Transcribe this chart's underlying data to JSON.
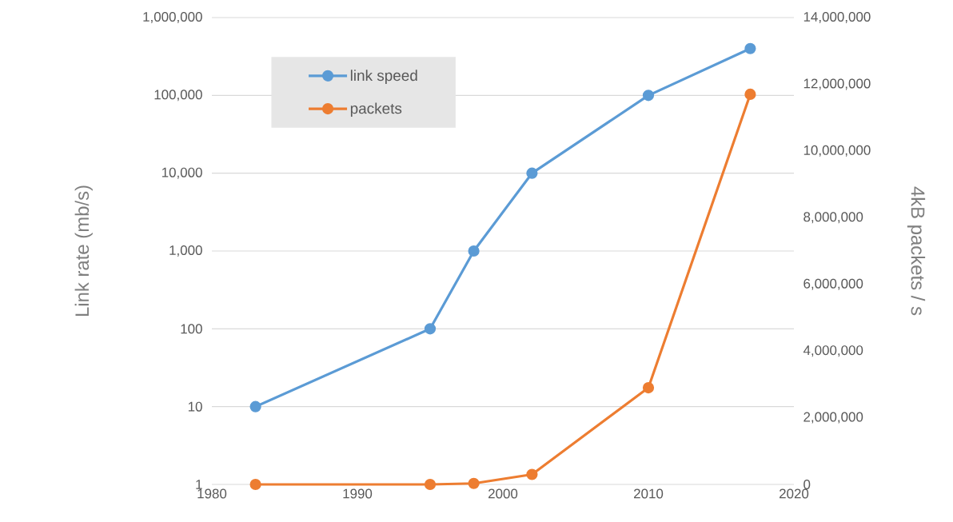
{
  "chart_data": {
    "type": "line",
    "ylabel": "Link rate (mb/s)",
    "y2label": "4kB packets / s",
    "x": [
      1983,
      1995,
      1998,
      2002,
      2010,
      2017
    ],
    "series": [
      {
        "name": "link speed",
        "color": "#5b9bd5",
        "values": [
          10,
          100,
          1000,
          10000,
          100000,
          400000
        ]
      },
      {
        "name": "packets",
        "color": "#ed7d31",
        "axis": "y2",
        "values": [
          0,
          0,
          30000,
          300000,
          2900000,
          11700000
        ]
      }
    ],
    "xlim": [
      1980,
      2020
    ],
    "xticks": [
      1980,
      1990,
      2000,
      2010,
      2020
    ],
    "ylim": [
      1,
      1000000
    ],
    "yticks": [
      1,
      10,
      100,
      {
        "value": 1000,
        "label": "1,000"
      },
      {
        "value": 10000,
        "label": "10,000"
      },
      {
        "value": 100000,
        "label": "100,000"
      },
      {
        "value": 1000000,
        "label": "1,000,000"
      }
    ],
    "y2lim": [
      0,
      14000000
    ],
    "y2ticks": [
      0,
      {
        "value": 2000000,
        "label": "2,000,000"
      },
      {
        "value": 4000000,
        "label": "4,000,000"
      },
      {
        "value": 6000000,
        "label": "6,000,000"
      },
      {
        "value": 8000000,
        "label": "8,000,000"
      },
      {
        "value": 10000000,
        "label": "10,000,000"
      },
      {
        "value": 12000000,
        "label": "12,000,000"
      },
      {
        "value": 14000000,
        "label": "14,000,000"
      }
    ],
    "log": "y",
    "grid": "y",
    "legend": "top left",
    "marker": "circle",
    "line_style": "solid"
  }
}
